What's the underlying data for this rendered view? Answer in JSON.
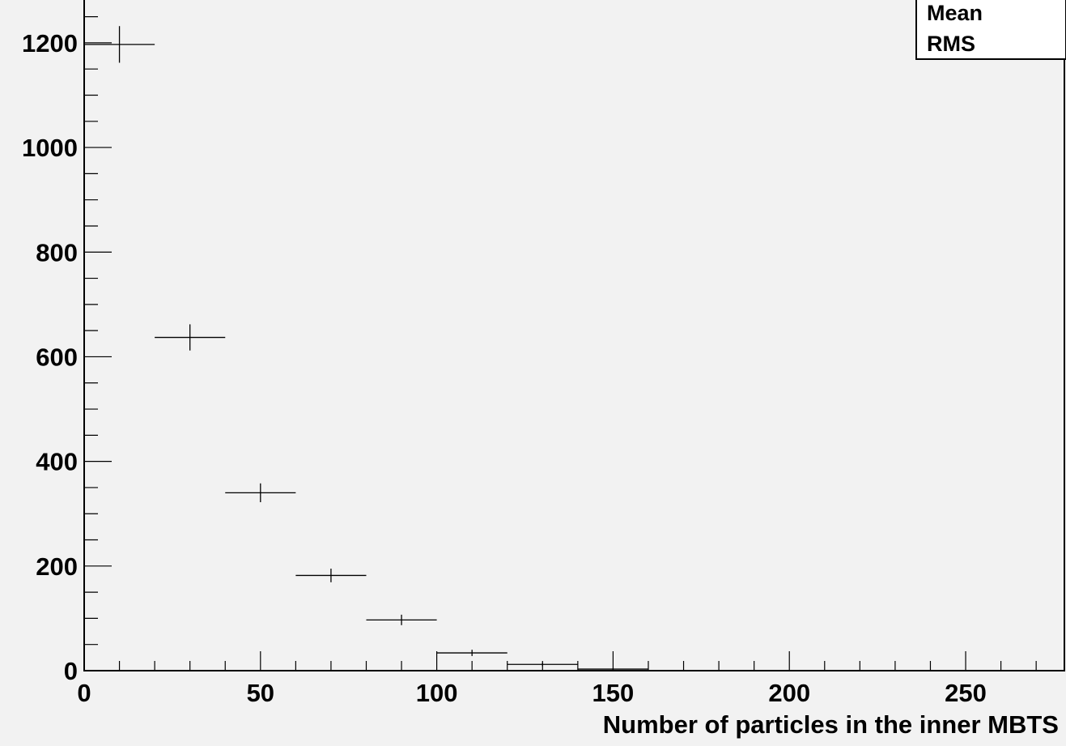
{
  "colors": {
    "background": "#f2f2f2",
    "axis": "#000000",
    "marker": "#000000",
    "stats_box_fill": "#ffffff"
  },
  "stats_box": {
    "mean_label": "Mean",
    "rms_label": "RMS"
  },
  "chart_data": {
    "type": "scatter",
    "title": "",
    "xlabel": "Number of particles in the inner MBTS",
    "ylabel": "",
    "xlim": [
      0,
      278
    ],
    "ylim": [
      0,
      1285
    ],
    "x_ticks": [
      0,
      50,
      100,
      150,
      200,
      250
    ],
    "y_ticks": [
      0,
      200,
      400,
      600,
      800,
      1000,
      1200
    ],
    "grid": false,
    "legend": "top-right stats box (Mean, RMS)",
    "series": [
      {
        "points": [
          {
            "x": 10,
            "y": 1197,
            "xerr": 10,
            "yerr": 35
          },
          {
            "x": 30,
            "y": 637,
            "xerr": 10,
            "yerr": 25
          },
          {
            "x": 50,
            "y": 340,
            "xerr": 10,
            "yerr": 18
          },
          {
            "x": 70,
            "y": 182,
            "xerr": 10,
            "yerr": 13
          },
          {
            "x": 90,
            "y": 97,
            "xerr": 10,
            "yerr": 10
          },
          {
            "x": 110,
            "y": 34,
            "xerr": 10,
            "yerr": 6
          },
          {
            "x": 130,
            "y": 12,
            "xerr": 10,
            "yerr": 3.5
          },
          {
            "x": 150,
            "y": 3,
            "xerr": 10,
            "yerr": 1.7
          }
        ]
      }
    ]
  }
}
